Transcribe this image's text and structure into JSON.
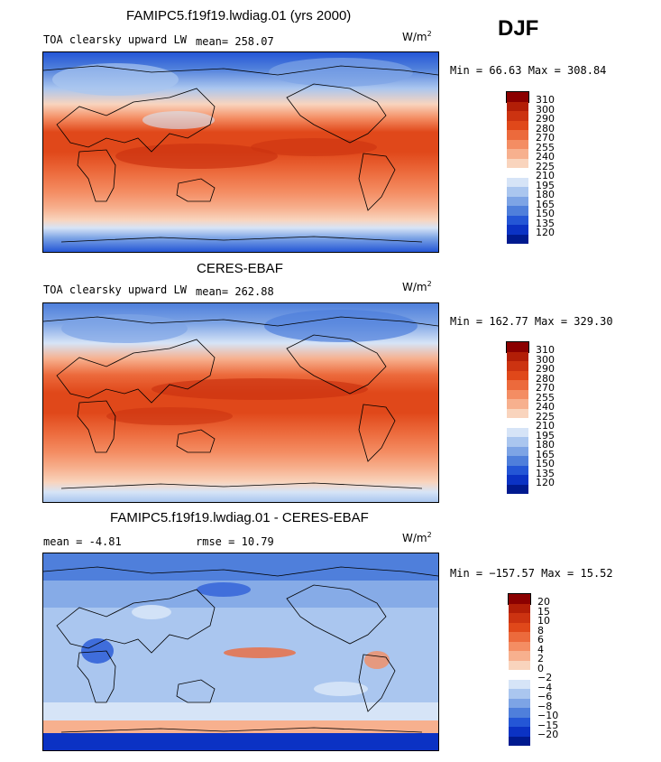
{
  "season": "DJF",
  "units": {
    "base": "W/m",
    "exp": "2"
  },
  "panels": [
    {
      "title": "FAMIPC5.f19f19.lwdiag.01 (yrs 2000)",
      "field": "TOA clearsky upward LW",
      "mean_label": "mean=",
      "mean": "258.07",
      "minmax": "Min =  66.63 Max = 308.84",
      "palette": "abs"
    },
    {
      "title": "CERES-EBAF",
      "field": "TOA clearsky upward LW",
      "mean_label": "mean=",
      "mean": "262.88",
      "minmax": "Min = 162.77 Max = 329.30",
      "palette": "abs"
    },
    {
      "title": "FAMIPC5.f19f19.lwdiag.01 - CERES-EBAF",
      "mean_label": "mean =",
      "mean": "-4.81",
      "rmse_label": "rmse =",
      "rmse": "10.79",
      "minmax": "Min = −157.57 Max =  15.52",
      "palette": "diff"
    }
  ],
  "colorbars": {
    "abs": {
      "labels": [
        "310",
        "300",
        "290",
        "280",
        "270",
        "255",
        "240",
        "225",
        "210",
        "195",
        "180",
        "165",
        "150",
        "135",
        "120"
      ],
      "colors": [
        "#8b0000",
        "#b21e07",
        "#cc3311",
        "#e0481a",
        "#ec6a3c",
        "#f48d63",
        "#f7b08e",
        "#f9d4bd",
        "#ffffff",
        "#d6e4f7",
        "#aac6ef",
        "#7da4e5",
        "#4f7fdb",
        "#2456d6",
        "#0b32c4",
        "#001a8f"
      ]
    },
    "diff": {
      "labels": [
        "20",
        "15",
        "10",
        "8",
        "6",
        "4",
        "2",
        "0",
        "−2",
        "−4",
        "−6",
        "−8",
        "−10",
        "−15",
        "−20"
      ],
      "colors": [
        "#8b0000",
        "#b21e07",
        "#cc3311",
        "#e0481a",
        "#ec6a3c",
        "#f48d63",
        "#f7b08e",
        "#f9d4bd",
        "#ffffff",
        "#d6e4f7",
        "#aac6ef",
        "#7da4e5",
        "#4f7fdb",
        "#2456d6",
        "#0b32c4",
        "#001a8f"
      ]
    }
  }
}
